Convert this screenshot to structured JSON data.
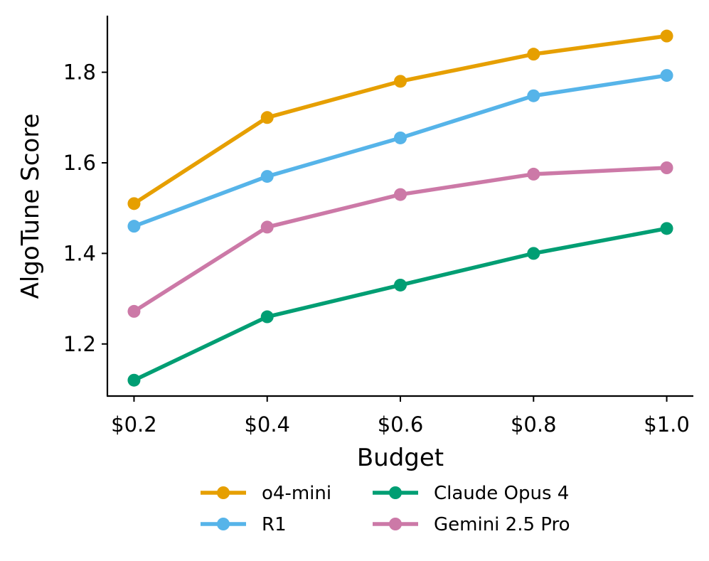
{
  "chart_data": {
    "type": "line",
    "title": "",
    "xlabel": "Budget",
    "ylabel": "AlgoTune Score",
    "categories": [
      "$0.2",
      "$0.4",
      "$0.6",
      "$0.8",
      "$1.0"
    ],
    "x": [
      0.2,
      0.4,
      0.6,
      0.8,
      1.0
    ],
    "xlim": [
      0.16,
      1.04
    ],
    "ylim": [
      1.085,
      1.925
    ],
    "yticks": [
      1.2,
      1.4,
      1.6,
      1.8
    ],
    "ytick_labels": [
      "1.2",
      "1.4",
      "1.6",
      "1.8"
    ],
    "grid": false,
    "legend_position": "bottom-center",
    "series": [
      {
        "name": "o4-mini",
        "color": "#E69F00",
        "values": [
          1.51,
          1.7,
          1.78,
          1.84,
          1.88
        ]
      },
      {
        "name": "R1",
        "color": "#56B4E9",
        "values": [
          1.46,
          1.57,
          1.655,
          1.748,
          1.793
        ]
      },
      {
        "name": "Claude Opus 4",
        "color": "#009E73",
        "values": [
          1.12,
          1.26,
          1.33,
          1.4,
          1.455
        ]
      },
      {
        "name": "Gemini 2.5 Pro",
        "color": "#CC79A7",
        "values": [
          1.272,
          1.458,
          1.53,
          1.575,
          1.589
        ]
      }
    ]
  }
}
